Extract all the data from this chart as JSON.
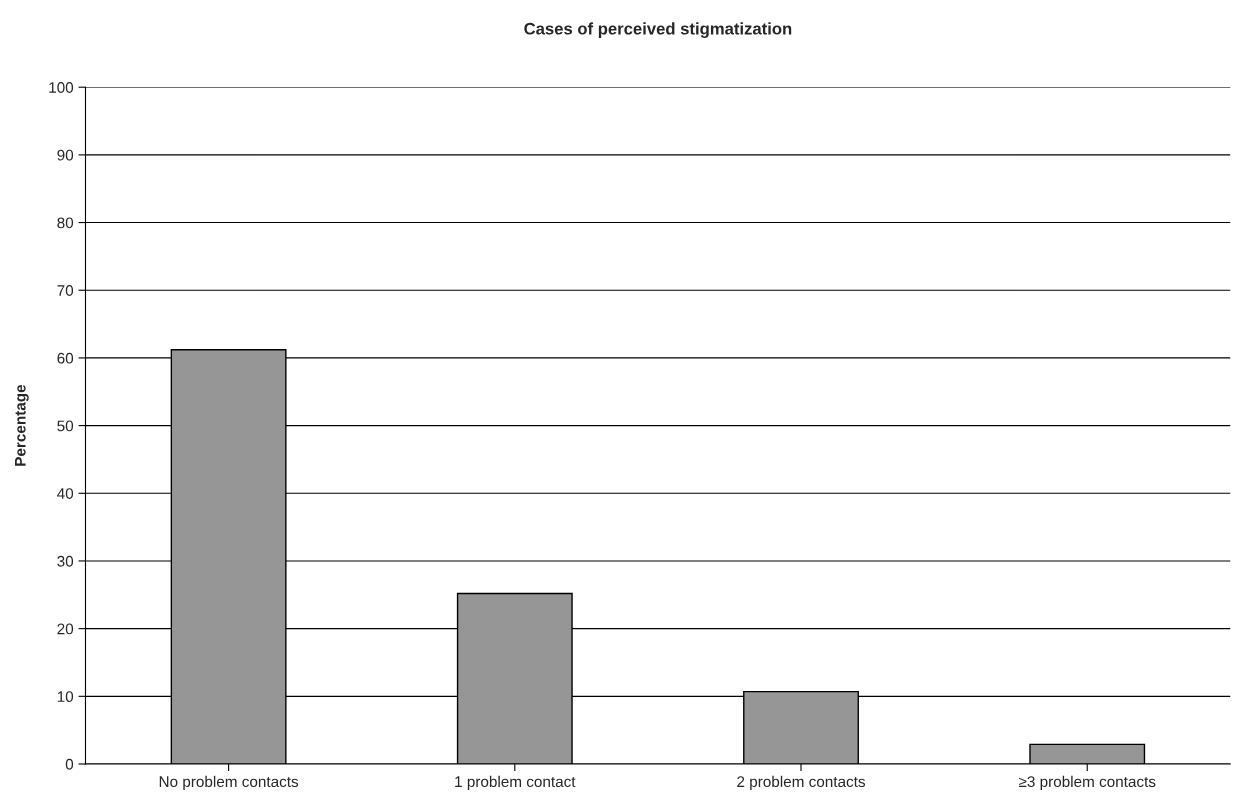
{
  "chart_data": {
    "type": "bar",
    "title": "Cases of perceived stigmatization",
    "ylabel": "Percentage",
    "categories": [
      "No problem contacts",
      "1 problem contact",
      "2 problem contacts",
      "≥3 problem contacts"
    ],
    "values": [
      61.2,
      25.2,
      10.7,
      2.9
    ],
    "color": "#969696",
    "ylim": [
      0,
      100
    ],
    "yticks": [
      0,
      10,
      20,
      30,
      40,
      50,
      60,
      70,
      80,
      90,
      100
    ],
    "grid": "y",
    "legend": false
  }
}
